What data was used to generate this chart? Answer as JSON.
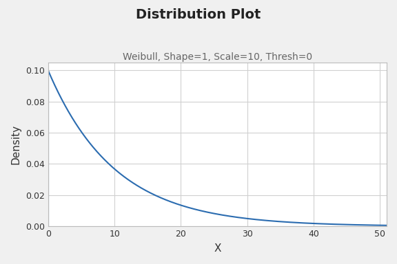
{
  "title": "Distribution Plot",
  "subtitle": "Weibull, Shape=1, Scale=10, Thresh=0",
  "xlabel": "X",
  "ylabel": "Density",
  "shape": 1,
  "scale": 10,
  "thresh": 0,
  "x_min": 0,
  "x_max": 51,
  "y_min": 0,
  "y_max": 0.105,
  "line_color": "#2b6cb0",
  "background_color": "#f0f0f0",
  "plot_bg_color": "#ffffff",
  "grid_color": "#d0d0d0",
  "title_fontsize": 14,
  "subtitle_fontsize": 10,
  "axis_label_fontsize": 11,
  "tick_fontsize": 9,
  "x_ticks": [
    0,
    10,
    20,
    30,
    40,
    50
  ],
  "y_ticks": [
    0.0,
    0.02,
    0.04,
    0.06,
    0.08,
    0.1
  ]
}
